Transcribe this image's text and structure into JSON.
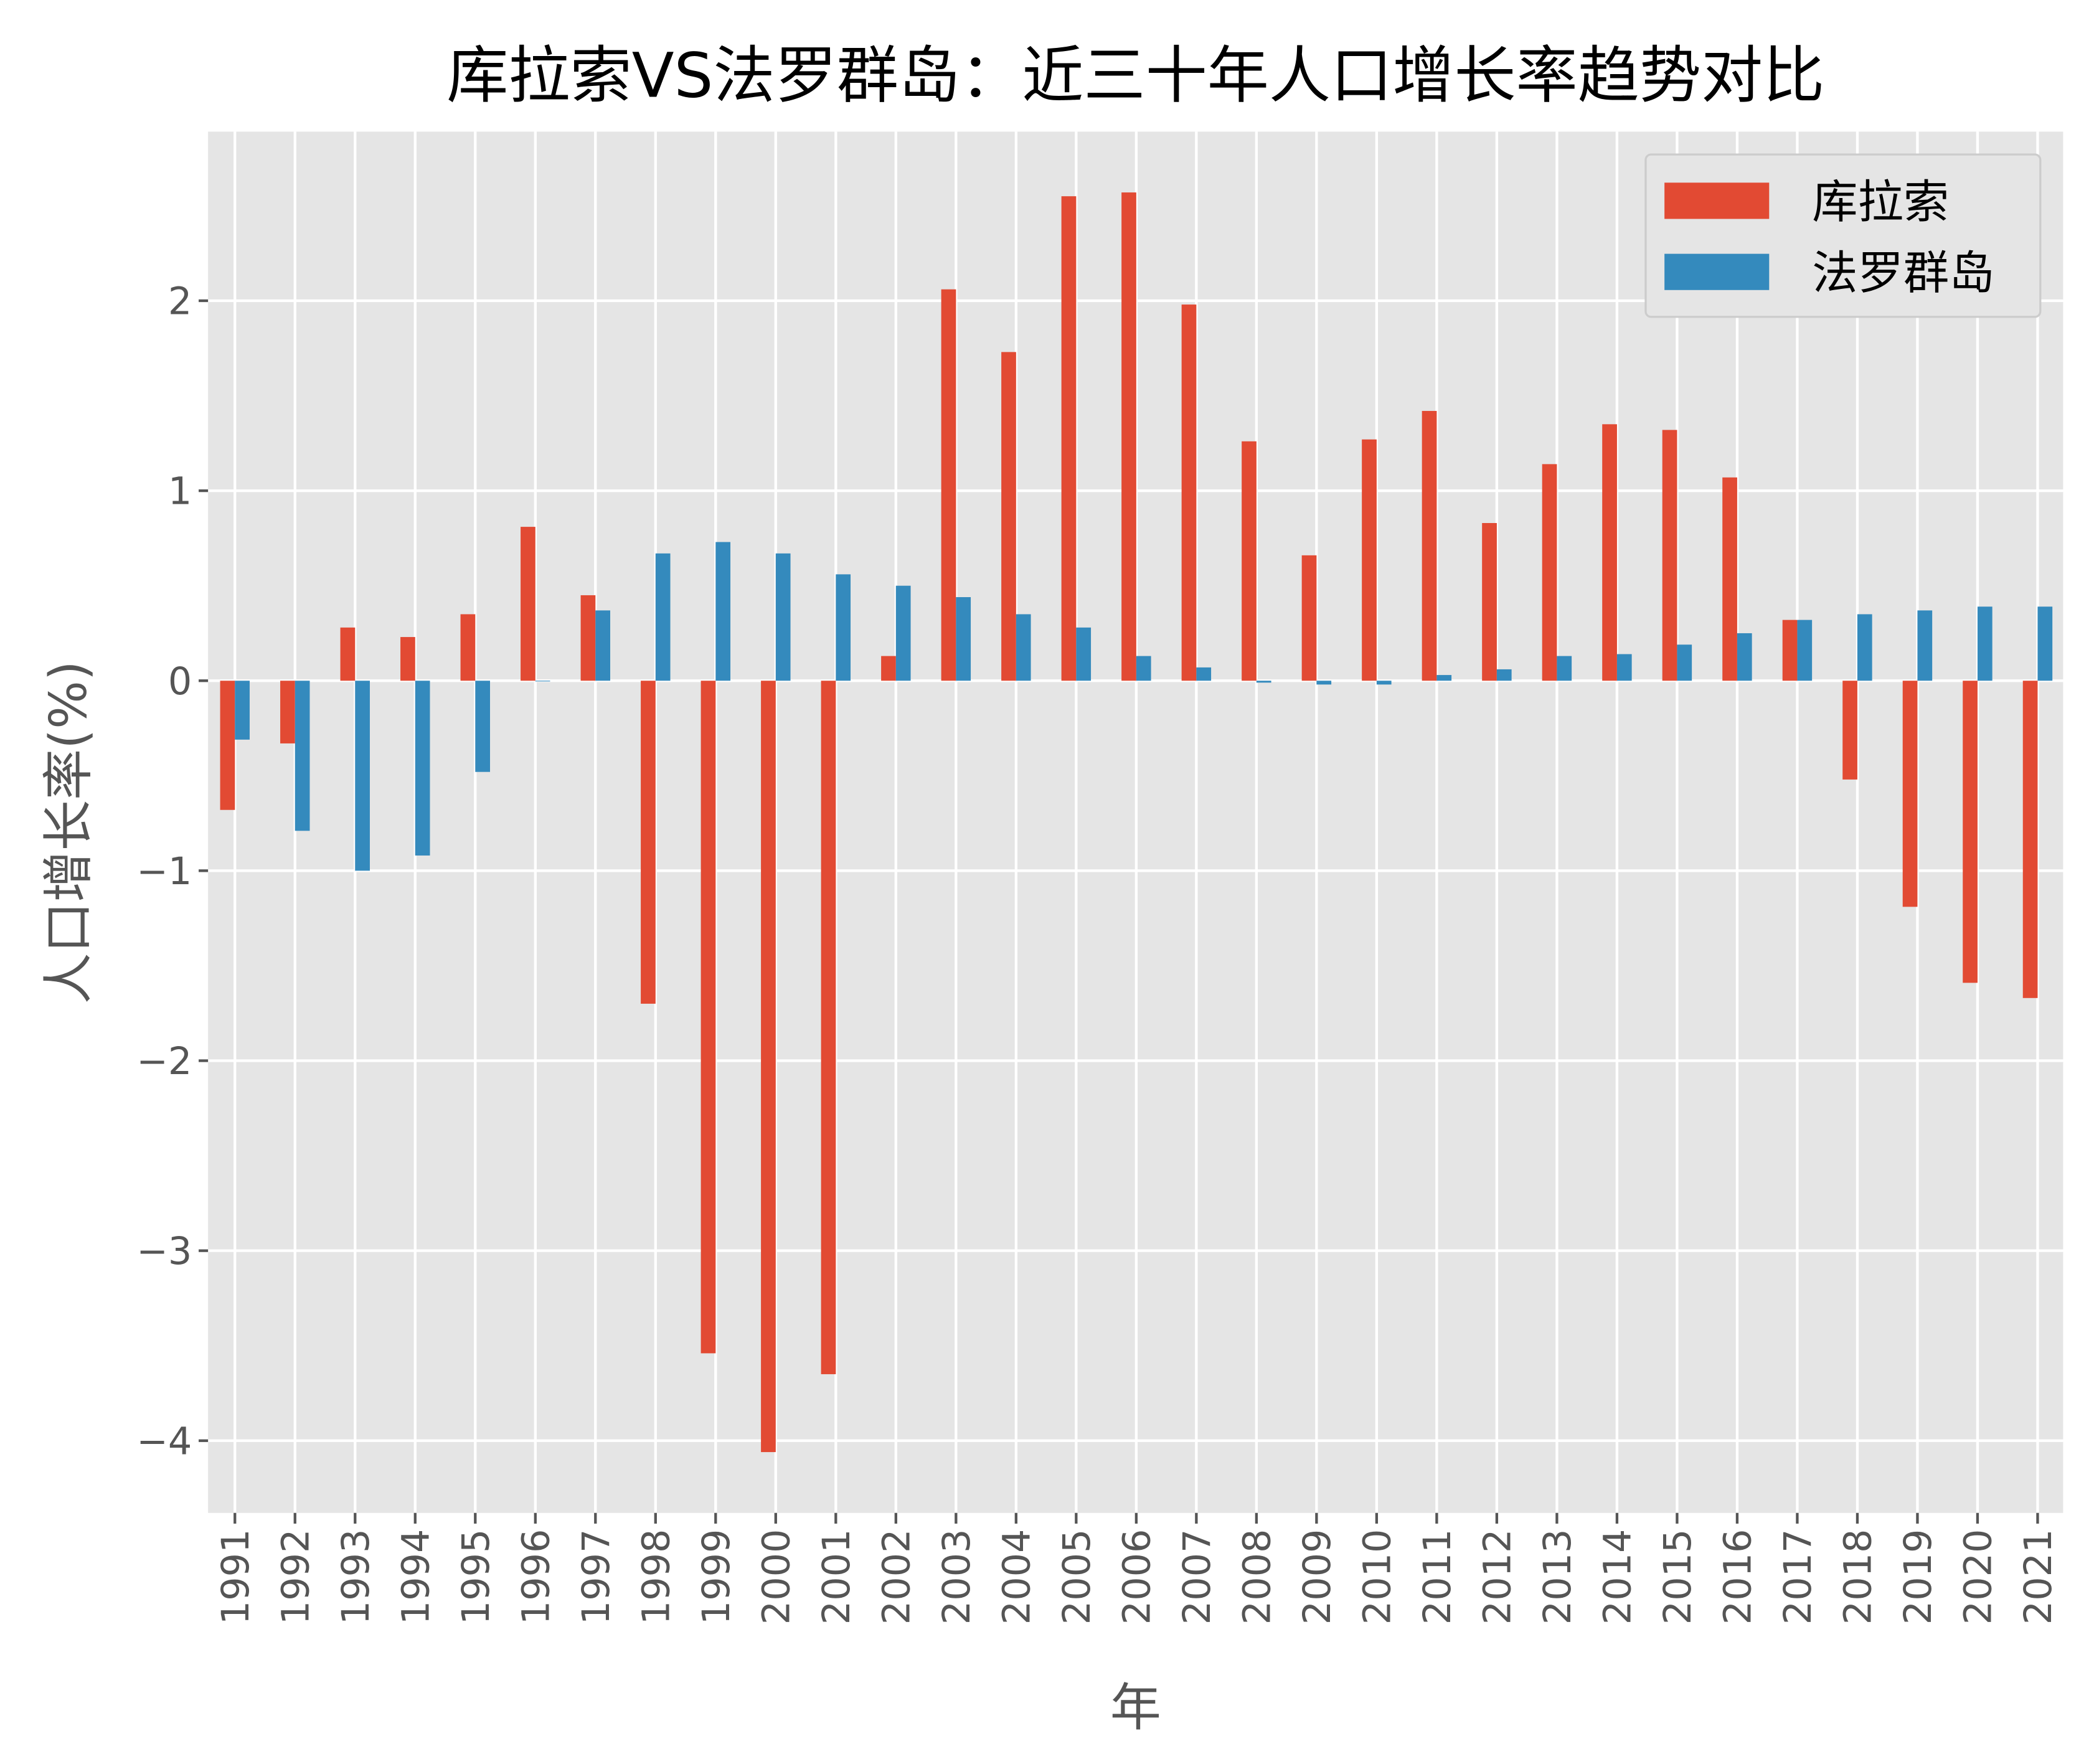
{
  "chart_data": {
    "type": "bar",
    "title": "库拉索VS法罗群岛：近三十年人口增长率趋势对比",
    "xlabel": "年",
    "ylabel": "人口增长率(%)",
    "ylim": [
      -4.38,
      2.89
    ],
    "yticks": [
      -4,
      -3,
      -2,
      -1,
      0,
      1,
      2
    ],
    "ytick_labels": [
      "−4",
      "−3",
      "−2",
      "−1",
      "0",
      "1",
      "2"
    ],
    "grid": true,
    "legend_position": "top-right",
    "categories": [
      "1991",
      "1992",
      "1993",
      "1994",
      "1995",
      "1996",
      "1997",
      "1998",
      "1999",
      "2000",
      "2001",
      "2002",
      "2003",
      "2004",
      "2005",
      "2006",
      "2007",
      "2008",
      "2009",
      "2010",
      "2011",
      "2012",
      "2013",
      "2014",
      "2015",
      "2016",
      "2017",
      "2018",
      "2019",
      "2020",
      "2021"
    ],
    "series": [
      {
        "name": "库拉索",
        "color": "#E24A33",
        "values": [
          -0.68,
          -0.33,
          0.28,
          0.23,
          0.35,
          0.81,
          0.45,
          -1.7,
          -3.54,
          -4.06,
          -3.65,
          0.13,
          2.06,
          1.73,
          2.55,
          2.57,
          1.98,
          1.26,
          0.66,
          1.27,
          1.42,
          0.83,
          1.14,
          1.35,
          1.32,
          1.07,
          0.32,
          -0.52,
          -1.19,
          -1.59,
          -1.67
        ]
      },
      {
        "name": "法罗群岛",
        "color": "#348ABD",
        "values": [
          -0.31,
          -0.79,
          -1.0,
          -0.92,
          -0.48,
          0.0,
          0.37,
          0.67,
          0.73,
          0.67,
          0.56,
          0.5,
          0.44,
          0.35,
          0.28,
          0.13,
          0.07,
          -0.01,
          -0.02,
          -0.02,
          0.03,
          0.06,
          0.13,
          0.14,
          0.19,
          0.25,
          0.32,
          0.35,
          0.37,
          0.39,
          0.39
        ]
      }
    ],
    "colors": {
      "plot_background": "#E5E5E5",
      "grid": "#FFFFFF",
      "text": "#555555"
    }
  }
}
